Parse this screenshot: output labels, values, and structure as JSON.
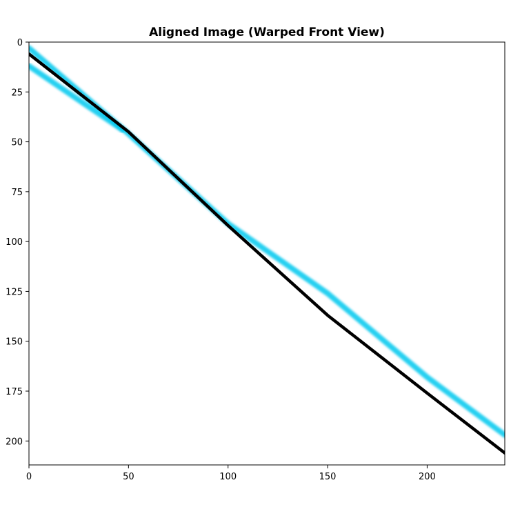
{
  "chart_data": {
    "type": "image",
    "title": "Aligned Image (Warped Front View)",
    "xlabel": "",
    "ylabel": "",
    "xlim": [
      0,
      239
    ],
    "ylim": [
      212,
      0
    ],
    "x_ticks": [
      0,
      50,
      100,
      150,
      200
    ],
    "y_ticks": [
      0,
      25,
      50,
      75,
      100,
      125,
      150,
      175,
      200
    ],
    "grid": false,
    "colors": {
      "black_line": "#000000",
      "cyan_line": "#00c8ee",
      "background": "#ffffff"
    },
    "series": [
      {
        "color": "black",
        "points": [
          [
            0,
            6
          ],
          [
            50,
            45
          ],
          [
            100,
            92
          ],
          [
            150,
            137
          ],
          [
            200,
            176
          ],
          [
            239,
            206
          ]
        ]
      },
      {
        "color": "cyan",
        "points": [
          [
            0,
            3
          ],
          [
            50,
            46
          ],
          [
            100,
            91
          ],
          [
            150,
            126
          ],
          [
            200,
            168
          ],
          [
            239,
            197
          ]
        ]
      },
      {
        "color": "cyan",
        "points": [
          [
            0,
            12
          ],
          [
            47,
            44
          ]
        ]
      }
    ]
  }
}
